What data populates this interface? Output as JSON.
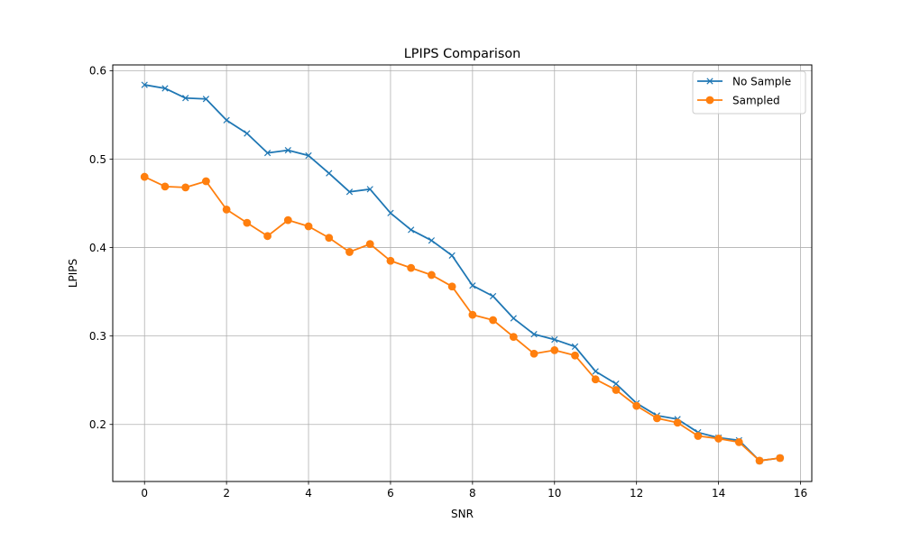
{
  "chart_data": {
    "type": "line",
    "title": "LPIPS Comparison",
    "xlabel": "SNR",
    "ylabel": "LPIPS",
    "xlim": [
      -0.775,
      16.275
    ],
    "ylim": [
      0.1355,
      0.6065
    ],
    "xticks": [
      0,
      2,
      4,
      6,
      8,
      10,
      12,
      14,
      16
    ],
    "yticks": [
      0.2,
      0.3,
      0.4,
      0.5,
      0.6
    ],
    "ytick_labels": [
      "0.2",
      "0.3",
      "0.4",
      "0.5",
      "0.6"
    ],
    "grid": true,
    "legend_position": "upper right",
    "x": [
      0,
      0.5,
      1,
      1.5,
      2,
      2.5,
      3,
      3.5,
      4,
      4.5,
      5,
      5.5,
      6,
      6.5,
      7,
      7.5,
      8,
      8.5,
      9,
      9.5,
      10,
      10.5,
      11,
      11.5,
      12,
      12.5,
      13,
      13.5,
      14,
      14.5,
      15,
      15.5
    ],
    "series": [
      {
        "name": "No Sample",
        "color": "#1f77b4",
        "marker": "x",
        "values": [
          0.584,
          0.58,
          0.569,
          0.568,
          0.544,
          0.529,
          0.507,
          0.51,
          0.504,
          0.484,
          0.463,
          0.466,
          0.439,
          0.42,
          0.408,
          0.391,
          0.357,
          0.345,
          0.32,
          0.302,
          0.296,
          0.288,
          0.26,
          0.246,
          0.224,
          0.21,
          0.206,
          0.191,
          0.185,
          0.182,
          0.159,
          0.162
        ]
      },
      {
        "name": "Sampled",
        "color": "#ff7f0e",
        "marker": "o",
        "values": [
          0.48,
          0.469,
          0.468,
          0.475,
          0.443,
          0.428,
          0.413,
          0.431,
          0.424,
          0.411,
          0.395,
          0.404,
          0.385,
          0.377,
          0.369,
          0.356,
          0.324,
          0.318,
          0.299,
          0.28,
          0.284,
          0.278,
          0.251,
          0.239,
          0.221,
          0.207,
          0.202,
          0.187,
          0.184,
          0.18,
          0.159,
          0.162
        ]
      }
    ]
  }
}
